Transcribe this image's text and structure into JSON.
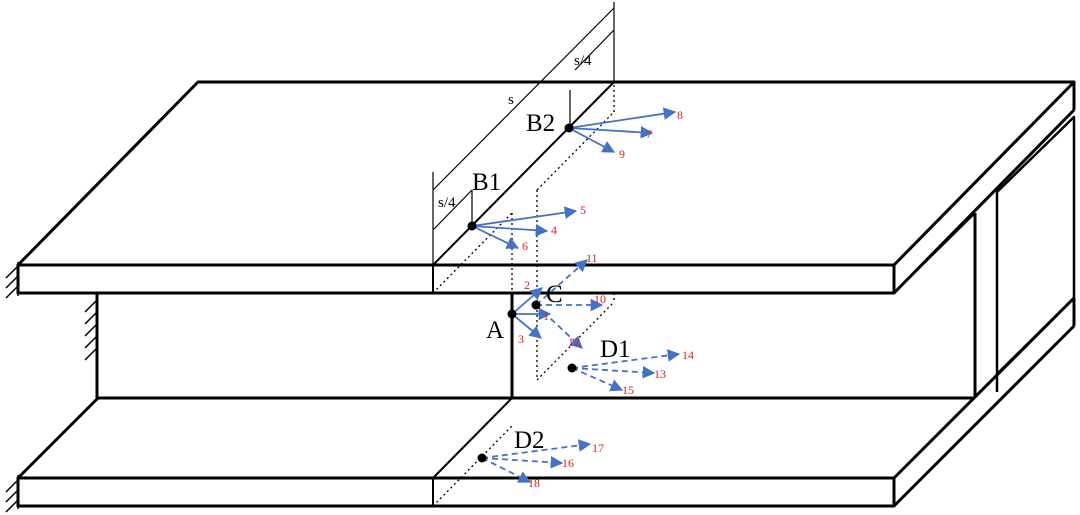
{
  "colors": {
    "outline": "#000000",
    "arrow": "#4472c4",
    "number": "#e02020"
  },
  "dimensions": {
    "s": "s",
    "s_quarter_top": "s/4",
    "s_quarter_left": "s/4"
  },
  "points": {
    "A": "A",
    "B1": "B1",
    "B2": "B2",
    "C": "C",
    "D1": "D1",
    "D2": "D2"
  },
  "vectors": [
    {
      "id": "1",
      "label": "1",
      "style": "solid"
    },
    {
      "id": "2",
      "label": "2",
      "style": "solid"
    },
    {
      "id": "3",
      "label": "3",
      "style": "solid"
    },
    {
      "id": "4",
      "label": "4",
      "style": "solid"
    },
    {
      "id": "5",
      "label": "5",
      "style": "solid"
    },
    {
      "id": "6",
      "label": "6",
      "style": "solid"
    },
    {
      "id": "7",
      "label": "7",
      "style": "solid"
    },
    {
      "id": "8",
      "label": "8",
      "style": "solid"
    },
    {
      "id": "9",
      "label": "9",
      "style": "solid"
    },
    {
      "id": "10",
      "label": "10",
      "style": "dashed"
    },
    {
      "id": "11",
      "label": "11",
      "style": "dashed"
    },
    {
      "id": "12",
      "label": "12",
      "style": "dashed"
    },
    {
      "id": "13",
      "label": "13",
      "style": "dashed"
    },
    {
      "id": "14",
      "label": "14",
      "style": "dashed"
    },
    {
      "id": "15",
      "label": "15",
      "style": "dashed"
    },
    {
      "id": "16",
      "label": "16",
      "style": "dashed"
    },
    {
      "id": "17",
      "label": "17",
      "style": "dashed"
    },
    {
      "id": "18",
      "label": "18",
      "style": "dashed"
    }
  ]
}
